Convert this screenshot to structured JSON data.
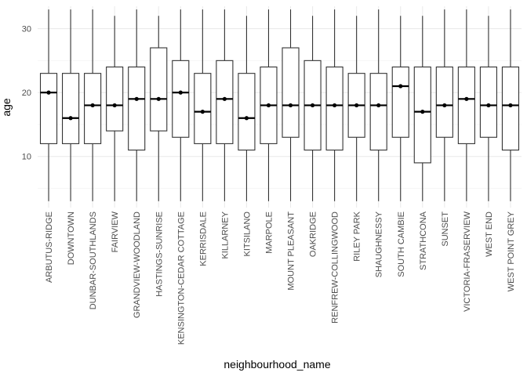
{
  "chart_data": {
    "type": "boxplot",
    "title": "",
    "xlabel": "neighbourhood_name",
    "ylabel": "age",
    "ylim": [
      2,
      33.5
    ],
    "yticks": [
      10,
      20,
      30
    ],
    "grid": true,
    "categories": [
      "ARBUTUS-RIDGE",
      "DOWNTOWN",
      "DUNBAR-SOUTHLANDS",
      "FAIRVIEW",
      "GRANDVIEW-WOODLAND",
      "HASTINGS-SUNRISE",
      "KENSINGTON-CEDAR COTTAGE",
      "KERRISDALE",
      "KILLARNEY",
      "KITSILANO",
      "MARPOLE",
      "MOUNT PLEASANT",
      "OAKRIDGE",
      "RENFREW-COLLINGWOOD",
      "RILEY PARK",
      "SHAUGHNESSY",
      "SOUTH CAMBIE",
      "STRATHCONA",
      "SUNSET",
      "VICTORIA-FRASERVIEW",
      "WEST END",
      "WEST POINT GREY"
    ],
    "boxes": [
      {
        "min": 3,
        "q1": 12,
        "median": 20,
        "q3": 23,
        "max": 33
      },
      {
        "min": 3,
        "q1": 12,
        "median": 16,
        "q3": 23,
        "max": 33
      },
      {
        "min": 3,
        "q1": 12,
        "median": 18,
        "q3": 23,
        "max": 33
      },
      {
        "min": 3,
        "q1": 14,
        "median": 18,
        "q3": 24,
        "max": 32
      },
      {
        "min": 3,
        "q1": 11,
        "median": 19,
        "q3": 24,
        "max": 33
      },
      {
        "min": 3,
        "q1": 14,
        "median": 19,
        "q3": 27,
        "max": 32
      },
      {
        "min": 3,
        "q1": 13,
        "median": 20,
        "q3": 25,
        "max": 33
      },
      {
        "min": 3,
        "q1": 12,
        "median": 17,
        "q3": 23,
        "max": 33
      },
      {
        "min": 3,
        "q1": 12,
        "median": 19,
        "q3": 25,
        "max": 33
      },
      {
        "min": 3,
        "q1": 11,
        "median": 16,
        "q3": 23,
        "max": 32
      },
      {
        "min": 3,
        "q1": 12,
        "median": 18,
        "q3": 24,
        "max": 33
      },
      {
        "min": 3,
        "q1": 13,
        "median": 18,
        "q3": 27,
        "max": 33
      },
      {
        "min": 3,
        "q1": 11,
        "median": 18,
        "q3": 25,
        "max": 32
      },
      {
        "min": 3,
        "q1": 11,
        "median": 18,
        "q3": 24,
        "max": 33
      },
      {
        "min": 3,
        "q1": 13,
        "median": 18,
        "q3": 23,
        "max": 32
      },
      {
        "min": 3,
        "q1": 11,
        "median": 18,
        "q3": 23,
        "max": 33
      },
      {
        "min": 3,
        "q1": 13,
        "median": 21,
        "q3": 24,
        "max": 32
      },
      {
        "min": 3,
        "q1": 9,
        "median": 17,
        "q3": 24,
        "max": 32
      },
      {
        "min": 3,
        "q1": 13,
        "median": 18,
        "q3": 24,
        "max": 33
      },
      {
        "min": 3,
        "q1": 12,
        "median": 19,
        "q3": 24,
        "max": 33
      },
      {
        "min": 3,
        "q1": 13,
        "median": 18,
        "q3": 24,
        "max": 32
      },
      {
        "min": 3,
        "q1": 11,
        "median": 18,
        "q3": 24,
        "max": 33
      }
    ]
  }
}
